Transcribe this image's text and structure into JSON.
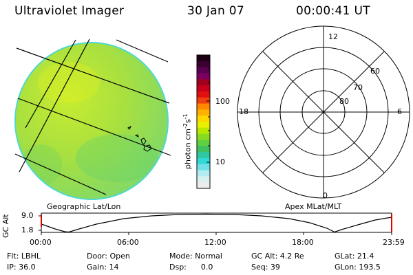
{
  "header": {
    "instrument": "Ultraviolet Imager",
    "date": "30 Jan 07",
    "time": "00:00:41 UT"
  },
  "colorbar": {
    "label": "photon cm",
    "label_sup1": "-2",
    "label_s": "s",
    "label_sup2": "-1",
    "ticks": [
      "100",
      "10"
    ],
    "colors": [
      "#1a0010",
      "#3a0030",
      "#5a0050",
      "#7a0060",
      "#a00020",
      "#c8001a",
      "#e01010",
      "#f04010",
      "#ff8800",
      "#ffb000",
      "#ffd800",
      "#e8f000",
      "#b8e800",
      "#88dc20",
      "#60d040",
      "#40c060",
      "#30c8a0",
      "#30d8d8",
      "#70e0e8",
      "#b0ecf0",
      "#d8f0f0",
      "#ececec"
    ]
  },
  "labels": {
    "geographic": "Geographic Lat/Lon",
    "apex": "Apex  MLat/MLT"
  },
  "polar": {
    "mlt_labels": {
      "top": "12",
      "right": "6",
      "bottom": "0",
      "left": "18"
    },
    "lat_labels": [
      "60",
      "70",
      "80"
    ]
  },
  "timeline": {
    "ylabel": "GC Alt",
    "yticks": [
      "9.0",
      "1.8"
    ],
    "xticks": [
      "00:00",
      "06:00",
      "12:00",
      "18:00",
      "23:59"
    ]
  },
  "info": {
    "flt": "Flt: LBHL",
    "door": "Door: Open",
    "mode": "Mode: Normal",
    "gcalt": "GC Alt: 4.2 Re",
    "glat": "GLat:  21.4",
    "ip": "IP: 36.0",
    "gain": "Gain: 14",
    "dsp": "Dsp:      0.0",
    "seq": "Seq: 39",
    "glon": "GLon: 193.5"
  }
}
